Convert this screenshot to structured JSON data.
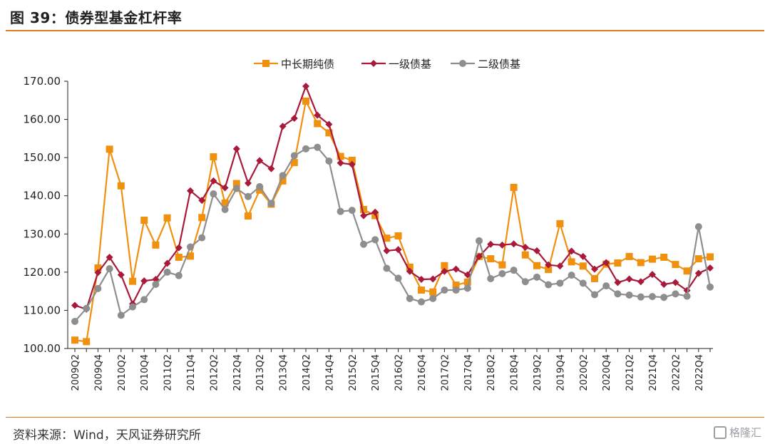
{
  "header": {
    "title": "图 39：债券型基金杠杆率"
  },
  "footer": {
    "source": "资料来源：Wind，天风证券研究所",
    "watermark": "格隆汇"
  },
  "colors": {
    "accent": "#e07a1f"
  },
  "chart_data": {
    "type": "line",
    "title": "",
    "xlabel": "",
    "ylabel": "",
    "ylim": [
      100,
      170
    ],
    "yticks": [
      "100.00",
      "110.00",
      "120.00",
      "130.00",
      "140.00",
      "150.00",
      "160.00",
      "170.00"
    ],
    "x_tick_labels": [
      "2009Q2",
      "2009Q4",
      "2010Q2",
      "2010Q4",
      "2011Q2",
      "2011Q4",
      "2012Q2",
      "2012Q4",
      "2013Q2",
      "2013Q4",
      "2014Q2",
      "2014Q4",
      "2015Q2",
      "2015Q4",
      "2016Q2",
      "2016Q4",
      "2017Q2",
      "2017Q4",
      "2018Q2",
      "2018Q4",
      "2019Q2",
      "2019Q4",
      "2020Q2",
      "2020Q4",
      "2021Q2",
      "2021Q4",
      "2022Q2",
      "2022Q4"
    ],
    "categories": [
      "2009Q2",
      "2009Q3",
      "2009Q4",
      "2010Q1",
      "2010Q2",
      "2010Q3",
      "2010Q4",
      "2011Q1",
      "2011Q2",
      "2011Q3",
      "2011Q4",
      "2012Q1",
      "2012Q2",
      "2012Q3",
      "2012Q4",
      "2013Q1",
      "2013Q2",
      "2013Q3",
      "2013Q4",
      "2014Q1",
      "2014Q2",
      "2014Q3",
      "2014Q4",
      "2015Q1",
      "2015Q2",
      "2015Q3",
      "2015Q4",
      "2016Q1",
      "2016Q2",
      "2016Q3",
      "2016Q4",
      "2017Q1",
      "2017Q2",
      "2017Q3",
      "2017Q4",
      "2018Q1",
      "2018Q2",
      "2018Q3",
      "2018Q4",
      "2019Q1",
      "2019Q2",
      "2019Q3",
      "2019Q4",
      "2020Q1",
      "2020Q2",
      "2020Q3",
      "2020Q4",
      "2021Q1",
      "2021Q2",
      "2021Q3",
      "2021Q4",
      "2022Q1",
      "2022Q2",
      "2022Q3",
      "2022Q4",
      "2023Q1"
    ],
    "legend_position": "top",
    "grid": false,
    "series": [
      {
        "name": "中长期纯债",
        "color": "#f0900f",
        "marker": "square",
        "values": [
          102.2,
          101.8,
          121.1,
          152.2,
          142.6,
          117.6,
          133.6,
          127.1,
          134.2,
          123.9,
          124.2,
          134.3,
          150.2,
          138.1,
          143.2,
          134.7,
          141.5,
          137.8,
          143.9,
          148.7,
          164.8,
          158.9,
          156.5,
          150.3,
          149.3,
          136.4,
          134.8,
          128.9,
          129.5,
          121.3,
          115.3,
          114.8,
          121.7,
          116.6,
          117.4,
          124.1,
          123.5,
          121.9,
          142.2,
          124.5,
          121.7,
          120.7,
          132.7,
          122.7,
          121.6,
          118.3,
          122.1,
          122.4,
          124.1,
          122.5,
          123.4,
          123.9,
          122.0,
          120.3,
          123.5,
          124.0
        ]
      },
      {
        "name": "一级债基",
        "color": "#a8193a",
        "marker": "diamond",
        "values": [
          111.3,
          110.3,
          119.9,
          123.9,
          119.3,
          111.7,
          117.7,
          118.1,
          122.3,
          126.4,
          141.3,
          138.8,
          143.9,
          142.1,
          152.3,
          143.3,
          149.2,
          147.1,
          158.2,
          160.3,
          168.7,
          161.1,
          158.7,
          148.6,
          148.2,
          134.8,
          135.7,
          125.6,
          125.9,
          120.2,
          118.1,
          118.2,
          120.2,
          120.8,
          119.3,
          124.1,
          127.3,
          127.1,
          127.4,
          126.5,
          125.6,
          121.9,
          121.6,
          125.5,
          124.1,
          120.8,
          122.5,
          117.3,
          118.2,
          117.5,
          119.4,
          116.8,
          117.3,
          115.2,
          119.7,
          121.1
        ]
      },
      {
        "name": "二级债基",
        "color": "#8e8e8e",
        "marker": "circle",
        "values": [
          107.1,
          110.5,
          115.7,
          120.9,
          108.7,
          110.9,
          112.8,
          116.8,
          120.0,
          119.1,
          126.6,
          129.0,
          140.5,
          136.4,
          141.9,
          139.8,
          142.4,
          138.0,
          145.3,
          150.5,
          152.3,
          152.7,
          149.1,
          135.9,
          136.2,
          127.3,
          128.5,
          121.0,
          118.4,
          113.1,
          112.2,
          113.1,
          115.3,
          115.3,
          115.8,
          128.2,
          118.3,
          119.6,
          120.5,
          117.5,
          118.7,
          116.7,
          117.1,
          119.2,
          117.1,
          114.1,
          116.4,
          114.3,
          114.0,
          113.5,
          113.6,
          113.4,
          114.3,
          113.7,
          131.9,
          116.1
        ]
      }
    ]
  }
}
